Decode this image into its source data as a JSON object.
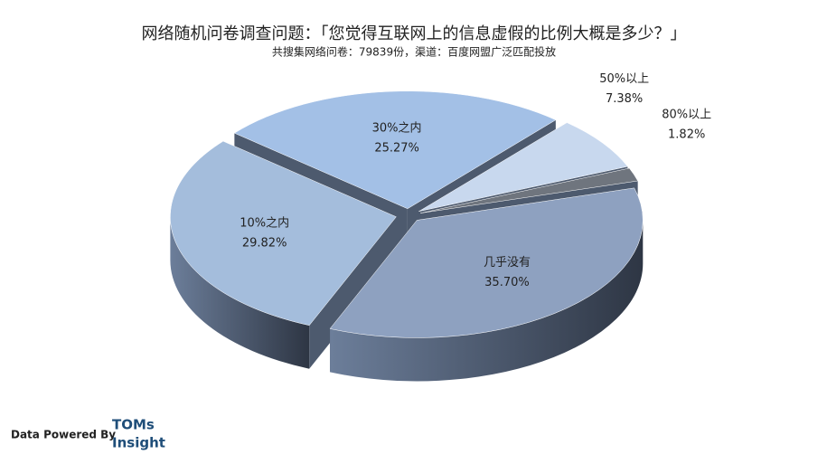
{
  "chart_data": {
    "type": "pie",
    "title": "网络随机问卷调查问题：「您觉得互联网上的信息虚假的比例大概是多少？」",
    "subtitle": "共搜集网络问卷：79839份，渠道：百度网盟广泛匹配投放",
    "categories": [
      "30%之内",
      "50%以上",
      "80%以上",
      "几乎没有",
      "10%之内"
    ],
    "values": [
      25.27,
      7.38,
      1.82,
      35.7,
      29.82
    ],
    "value_labels": [
      "25.27%",
      "7.38%",
      "1.82%",
      "35.70%",
      "29.82%"
    ],
    "colors": [
      "#a3c0e6",
      "#c8d8ee",
      "#6f757e",
      "#8ea1c0",
      "#a4bddc"
    ],
    "credit": "Data Powered By",
    "brand": [
      "TOMs",
      "Insight"
    ]
  }
}
